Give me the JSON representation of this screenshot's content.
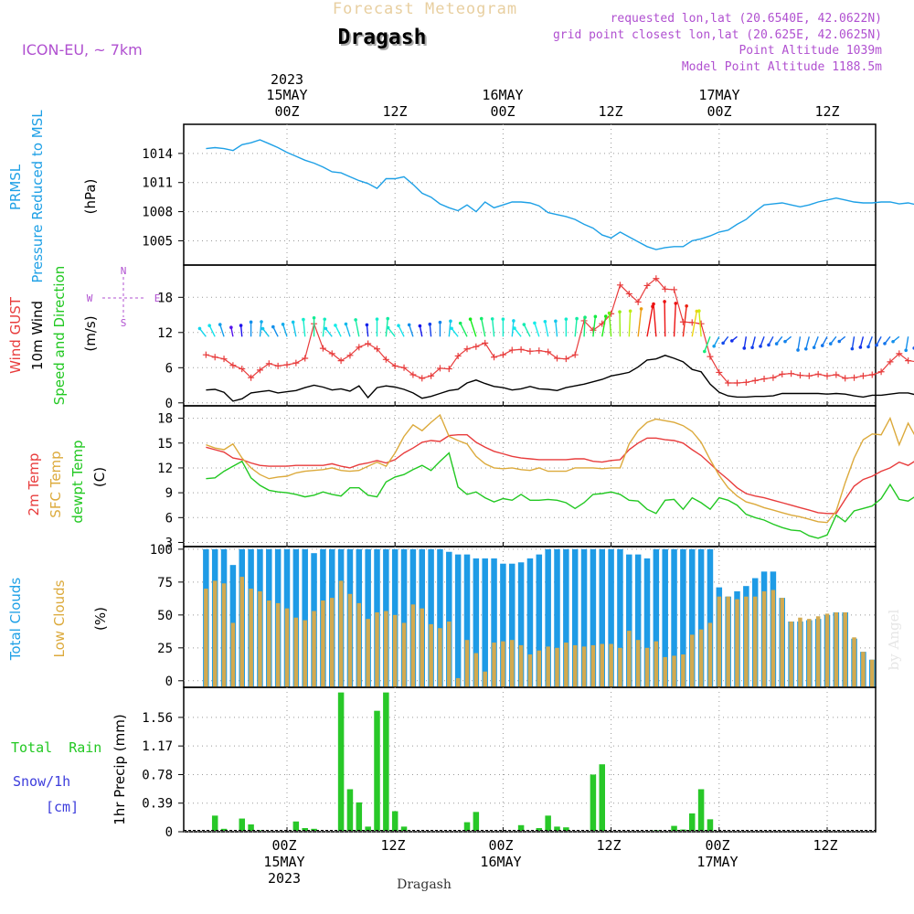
{
  "header": {
    "title_top": "Forecast Meteogram",
    "location": "Dragash",
    "model": "ICON-EU, ~ 7km",
    "requested": "requested lon,lat (20.6540E, 42.0622N)",
    "grid_point": "grid point closest lon,lat (20.625E, 42.0625N)",
    "point_alt": "Point Altitude 1039m",
    "model_alt": "Model Point Altitude 1188.5m",
    "footer_location": "Dragash",
    "watermark": "by Angel"
  },
  "time_axis": {
    "top_ticks": [
      {
        "label": "00Z",
        "date": "15MAY",
        "year": "2023"
      },
      {
        "label": "12Z",
        "date": "",
        "year": ""
      },
      {
        "label": "00Z",
        "date": "16MAY",
        "year": ""
      },
      {
        "label": "12Z",
        "date": "",
        "year": ""
      },
      {
        "label": "00Z",
        "date": "17MAY",
        "year": ""
      },
      {
        "label": "12Z",
        "date": "",
        "year": ""
      }
    ],
    "bottom_ticks": [
      {
        "label": "00Z",
        "date": "15MAY",
        "year": "2023"
      },
      {
        "label": "12Z",
        "date": "",
        "year": ""
      },
      {
        "label": "00Z",
        "date": "16MAY",
        "year": ""
      },
      {
        "label": "12Z",
        "date": "",
        "year": ""
      },
      {
        "label": "00Z",
        "date": "17MAY",
        "year": ""
      },
      {
        "label": "12Z",
        "date": "",
        "year": ""
      }
    ]
  },
  "colors": {
    "pressure": "#1ea0e6",
    "gust": "#e83c3c",
    "wind": "#000000",
    "temp2m": "#e83c3c",
    "sfc": "#dcaa3c",
    "dewpt": "#22c822",
    "total_clouds": "#1e9be6",
    "low_clouds": "#d2aa50",
    "rain": "#28c828",
    "snow": "#3c3cdc",
    "purple": "#b050d0"
  },
  "chart_data": [
    {
      "type": "line",
      "panel": "pressure",
      "label_lines": [
        "PRMSL",
        "Pressure Reduced to MSL"
      ],
      "unit": "(hPa)",
      "ylim": [
        1002.5,
        1017.0
      ],
      "yticks": [
        1005,
        1008,
        1011,
        1014
      ],
      "x_hours_start": -9,
      "x_step_hours": 1,
      "series": [
        {
          "values": [
            1014.5,
            1014.6,
            1014.5,
            1014.3,
            1014.9,
            1015.1,
            1015.4,
            1015.0,
            1014.6,
            1014.1,
            1013.7,
            1013.3,
            1013.0,
            1012.6,
            1012.1,
            1012.0,
            1011.6,
            1011.2,
            1010.9,
            1010.4,
            1011.4,
            1011.4,
            1011.6,
            1010.8,
            1009.9,
            1009.5,
            1008.8,
            1008.4,
            1008.1,
            1008.7,
            1008.0,
            1009.0,
            1008.4,
            1008.7,
            1009.0,
            1009.0,
            1008.9,
            1008.6,
            1007.9,
            1007.7,
            1007.5,
            1007.2,
            1006.7,
            1006.3,
            1005.6,
            1005.3,
            1005.9,
            1005.4,
            1004.9,
            1004.4,
            1004.1,
            1004.3,
            1004.4,
            1004.4,
            1005.0,
            1005.2,
            1005.5,
            1005.9,
            1006.1,
            1006.7,
            1007.2,
            1008.0,
            1008.7,
            1008.8,
            1008.9,
            1008.7,
            1008.5,
            1008.7,
            1009.0,
            1009.2,
            1009.4,
            1009.2,
            1009.0,
            1008.9,
            1008.9,
            1009.0,
            1009.0,
            1008.8,
            1008.9,
            1008.7,
            1009.0,
            1008.8,
            1009.1,
            1009.4,
            1009.6
          ]
        }
      ]
    },
    {
      "type": "line",
      "panel": "wind",
      "label_lines": [
        "Wind GUST",
        "10m Wind",
        "Speed and Direction"
      ],
      "unit": "(m/s)",
      "compass": [
        "N",
        "S",
        "W",
        "E"
      ],
      "ylim": [
        -0.5,
        23.5
      ],
      "yticks": [
        0,
        6,
        12,
        18
      ],
      "x_hours_start": -9,
      "x_step_hours": 1,
      "series": [
        {
          "name": "Wind GUST",
          "values": [
            8.2,
            7.8,
            7.5,
            6.4,
            5.8,
            4.3,
            5.6,
            6.7,
            6.3,
            6.5,
            6.8,
            7.6,
            13.5,
            9.3,
            8.4,
            7.2,
            8.1,
            9.5,
            10.1,
            9.2,
            7.4,
            6.3,
            6.0,
            4.8,
            4.2,
            4.6,
            5.9,
            5.8,
            8.0,
            9.2,
            9.6,
            10.2,
            7.8,
            8.2,
            9.0,
            9.1,
            8.8,
            8.9,
            8.7,
            7.6,
            7.5,
            8.2,
            14.0,
            12.4,
            13.5,
            15.2,
            20.1,
            18.6,
            17.2,
            20.0,
            21.2,
            19.4,
            19.3,
            13.8,
            13.7,
            13.5,
            7.9,
            5.2,
            3.4,
            3.4,
            3.5,
            3.8,
            4.1,
            4.3,
            4.9,
            5.0,
            4.7,
            4.6,
            4.9,
            4.6,
            4.8,
            4.2,
            4.3,
            4.6,
            4.8,
            5.3,
            7.0,
            8.4,
            7.2,
            7.0,
            6.6,
            6.2,
            5.1,
            4.7,
            4.5
          ]
        },
        {
          "name": "10m Wind",
          "values": [
            2.2,
            2.3,
            1.8,
            0.3,
            0.7,
            1.7,
            1.9,
            2.1,
            1.7,
            1.9,
            2.1,
            2.6,
            3.0,
            2.7,
            2.2,
            2.4,
            2.0,
            2.9,
            0.9,
            2.6,
            2.9,
            2.7,
            2.3,
            1.7,
            0.8,
            1.1,
            1.6,
            2.1,
            2.3,
            3.4,
            3.9,
            3.3,
            2.8,
            2.6,
            2.2,
            2.4,
            2.8,
            2.4,
            2.3,
            2.1,
            2.6,
            2.9,
            3.2,
            3.6,
            4.0,
            4.6,
            4.9,
            5.2,
            6.1,
            7.3,
            7.5,
            8.1,
            7.6,
            7.0,
            5.7,
            5.3,
            3.2,
            1.8,
            1.2,
            1.0,
            1.0,
            1.1,
            1.1,
            1.2,
            1.6,
            1.6,
            1.6,
            1.6,
            1.6,
            1.5,
            1.6,
            1.5,
            1.2,
            1.0,
            1.3,
            1.3,
            1.5,
            1.7,
            1.7,
            1.3,
            1.6,
            2.0,
            1.5,
            1.5,
            1.4
          ]
        }
      ]
    },
    {
      "type": "line",
      "panel": "temperature",
      "label_lines": [
        "2m Temp",
        "SFC Temp",
        "dewpt Temp"
      ],
      "unit": "(C)",
      "ylim": [
        2.5,
        19.5
      ],
      "yticks": [
        3,
        6,
        9,
        12,
        15,
        18
      ],
      "x_hours_start": -9,
      "x_step_hours": 1,
      "series": [
        {
          "name": "2m Temp",
          "values": [
            14.5,
            14.2,
            13.9,
            13.2,
            13.0,
            12.6,
            12.3,
            12.2,
            12.2,
            12.2,
            12.3,
            12.3,
            12.3,
            12.3,
            12.5,
            12.2,
            12.0,
            12.4,
            12.6,
            12.9,
            12.6,
            13.0,
            13.8,
            14.4,
            15.1,
            15.3,
            15.2,
            15.9,
            16.0,
            16.0,
            15.1,
            14.5,
            14.0,
            13.7,
            13.4,
            13.2,
            13.1,
            13.0,
            13.0,
            13.0,
            13.0,
            13.1,
            13.1,
            12.8,
            12.7,
            12.9,
            13.0,
            14.2,
            15.0,
            15.6,
            15.6,
            15.4,
            15.3,
            15.0,
            14.2,
            13.5,
            12.5,
            11.5,
            10.6,
            9.6,
            8.9,
            8.6,
            8.4,
            8.1,
            7.8,
            7.5,
            7.2,
            6.9,
            6.6,
            6.5,
            6.5,
            8.2,
            9.8,
            10.6,
            11.0,
            11.6,
            12.0,
            12.7,
            12.3,
            13.0,
            12.5,
            12.1,
            11.9,
            11.3,
            10.6
          ]
        },
        {
          "name": "SFC Temp",
          "values": [
            14.8,
            14.4,
            14.2,
            14.9,
            13.2,
            12.0,
            11.2,
            10.7,
            10.9,
            11.0,
            11.4,
            11.6,
            11.7,
            11.8,
            12.0,
            11.7,
            11.6,
            11.7,
            12.2,
            12.7,
            12.2,
            13.8,
            15.8,
            17.2,
            16.5,
            17.5,
            18.4,
            15.8,
            15.3,
            14.9,
            13.4,
            12.5,
            12.0,
            11.9,
            12.0,
            11.8,
            11.7,
            12.0,
            11.6,
            11.6,
            11.6,
            12.0,
            12.0,
            12.0,
            11.9,
            12.0,
            12.0,
            14.9,
            16.5,
            17.5,
            17.9,
            17.7,
            17.5,
            17.1,
            16.4,
            15.1,
            13.0,
            11.1,
            9.6,
            8.6,
            7.9,
            7.6,
            7.2,
            6.9,
            6.6,
            6.3,
            6.1,
            5.8,
            5.5,
            5.4,
            6.8,
            10.2,
            13.2,
            15.4,
            16.1,
            16.0,
            18.0,
            14.8,
            17.4,
            15.4,
            15.1,
            14.6,
            13.8,
            12.1,
            11.3
          ]
        },
        {
          "name": "dewpt Temp",
          "values": [
            10.7,
            10.8,
            11.6,
            12.2,
            12.8,
            10.8,
            9.9,
            9.3,
            9.1,
            9.0,
            8.8,
            8.5,
            8.7,
            9.1,
            8.8,
            8.6,
            9.6,
            9.6,
            8.7,
            8.5,
            10.3,
            10.9,
            11.2,
            11.8,
            12.3,
            11.7,
            12.8,
            13.8,
            9.7,
            8.8,
            9.1,
            8.4,
            7.9,
            8.3,
            8.1,
            8.8,
            8.1,
            8.1,
            8.2,
            8.1,
            7.8,
            7.1,
            7.8,
            8.8,
            8.9,
            9.1,
            8.8,
            8.1,
            8.0,
            7.0,
            6.5,
            8.1,
            8.2,
            7.0,
            8.4,
            7.8,
            7.0,
            8.4,
            8.1,
            7.5,
            6.4,
            6.0,
            5.7,
            5.2,
            4.8,
            4.5,
            4.4,
            3.8,
            3.5,
            3.9,
            6.3,
            5.5,
            6.8,
            7.1,
            7.4,
            8.3,
            10.0,
            8.2,
            8.0,
            8.7,
            9.6,
            9.9,
            9.8,
            9.3,
            8.8
          ]
        }
      ]
    },
    {
      "type": "bar",
      "panel": "clouds",
      "label_lines": [
        "Total Clouds",
        "Low Clouds"
      ],
      "unit": "(%)",
      "ylim": [
        -5,
        102
      ],
      "yticks": [
        0,
        25,
        50,
        75,
        100
      ],
      "x_hours_start": -9,
      "x_step_hours": 1,
      "series": [
        {
          "name": "Total Clouds",
          "values": [
            100,
            100,
            100,
            88,
            100,
            100,
            100,
            100,
            100,
            100,
            100,
            100,
            97,
            100,
            100,
            100,
            100,
            100,
            100,
            100,
            100,
            100,
            100,
            100,
            100,
            100,
            100,
            98,
            96,
            96,
            93,
            93,
            93,
            89,
            89,
            90,
            93,
            96,
            100,
            100,
            100,
            100,
            100,
            100,
            100,
            100,
            100,
            96,
            96,
            93,
            100,
            100,
            100,
            100,
            100,
            100,
            100,
            71,
            64,
            68,
            72,
            78,
            83,
            83,
            63,
            45,
            45,
            46,
            47,
            50,
            52,
            52,
            32,
            22,
            16,
            14,
            82,
            100,
            100,
            89,
            84,
            100,
            100,
            100,
            100,
            100
          ]
        },
        {
          "name": "Low Clouds",
          "values": [
            70,
            76,
            74,
            44,
            79,
            70,
            68,
            61,
            59,
            55,
            48,
            46,
            53,
            61,
            63,
            76,
            66,
            59,
            47,
            52,
            53,
            50,
            44,
            58,
            55,
            43,
            40,
            45,
            2,
            31,
            21,
            7,
            29,
            30,
            31,
            27,
            20,
            23,
            26,
            25,
            29,
            27,
            26,
            27,
            28,
            28,
            25,
            38,
            31,
            25,
            30,
            18,
            19,
            20,
            35,
            39,
            44,
            64,
            64,
            62,
            64,
            64,
            68,
            69,
            63,
            45,
            48,
            47,
            49,
            51,
            52,
            52,
            33,
            22,
            16,
            14,
            62,
            73,
            75,
            73,
            69,
            81,
            73,
            71,
            76,
            57
          ]
        }
      ]
    },
    {
      "type": "bar",
      "panel": "precip",
      "label_lines": [
        "Total  Rain",
        "Snow/1h",
        "[cm]"
      ],
      "unit": "1hr Precip (mm)",
      "ylim": [
        0,
        1.97
      ],
      "yticks": [
        0,
        0.39,
        0.78,
        1.17,
        1.56
      ],
      "x_hours_start": -9,
      "x_step_hours": 1,
      "series": [
        {
          "name": "Total Rain",
          "values": [
            0,
            0.22,
            0.04,
            0,
            0.18,
            0.1,
            0.02,
            0,
            0,
            0,
            0.14,
            0.05,
            0.04,
            0,
            0,
            1.9,
            0.58,
            0.4,
            0.07,
            1.65,
            1.9,
            0.28,
            0.07,
            0,
            0,
            0,
            0,
            0,
            0,
            0.13,
            0.27,
            0,
            0,
            0,
            0,
            0.09,
            0,
            0.05,
            0.22,
            0.07,
            0.06,
            0,
            0,
            0.78,
            0.92,
            0,
            0,
            0,
            0,
            0,
            0.02,
            0,
            0.08,
            0.03,
            0.25,
            0.58,
            0.17,
            0,
            0,
            0,
            0,
            0,
            0,
            0,
            0,
            0,
            0,
            0,
            0,
            0,
            0,
            0,
            0,
            0,
            0,
            0,
            0.02,
            0.67,
            0.28,
            0.88,
            0.99,
            0.38,
            0.57,
            0.05
          ]
        },
        {
          "name": "Snow/1h",
          "values": []
        }
      ]
    }
  ]
}
